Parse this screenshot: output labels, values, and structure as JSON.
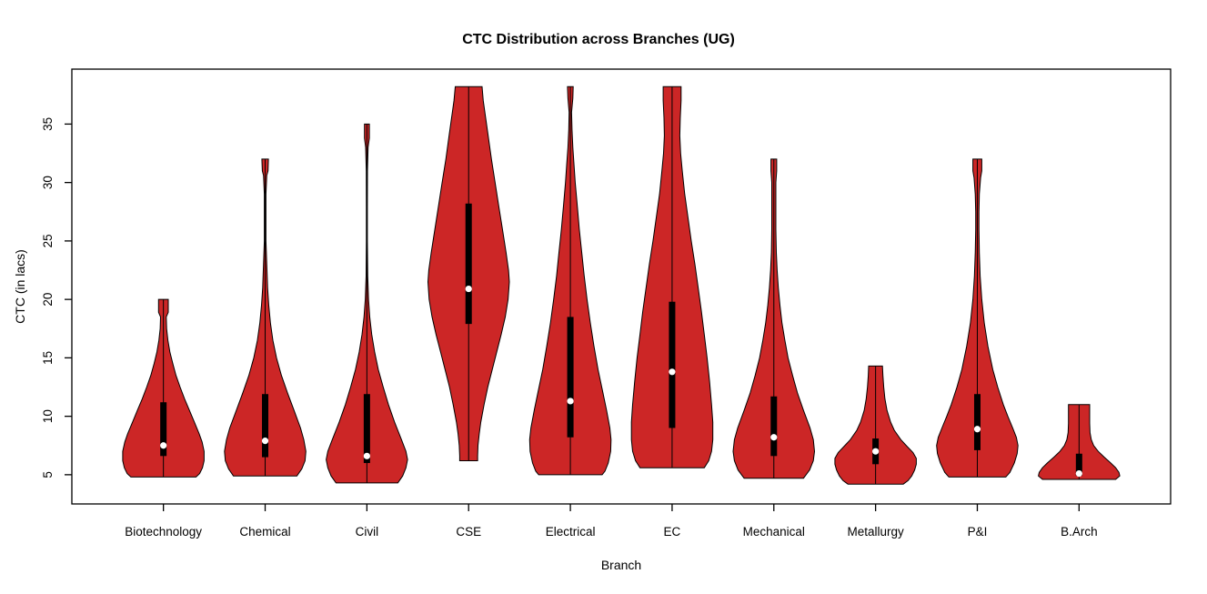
{
  "chart_data": {
    "type": "violin",
    "title": "CTC Distribution across Branches (UG)",
    "xlabel": "Branch",
    "ylabel": "CTC (in lacs)",
    "yticks": [
      5,
      10,
      15,
      20,
      25,
      30,
      35
    ],
    "ylim": [
      2.5,
      39.7
    ],
    "grid": false,
    "legend": "none",
    "colors": {
      "violin_fill": "#CC2626",
      "violin_outline": "#000000",
      "box": "#000000",
      "median_dot": "#FFFFFF",
      "background": "#FFFFFF",
      "frame": "#000000"
    },
    "categories": [
      "Biotechnology",
      "Chemical",
      "Civil",
      "CSE",
      "Electrical",
      "EC",
      "Mechanical",
      "Metallurgy",
      "P&I",
      "B.Arch"
    ],
    "series": [
      {
        "name": "Biotechnology",
        "min": 5.0,
        "max": 20.0,
        "q1": 6.6,
        "median": 7.5,
        "q3": 11.2,
        "shape": [
          [
            20.0,
            0.12
          ],
          [
            18.9,
            0.12
          ],
          [
            18.5,
            0.07
          ],
          [
            17.5,
            0.08
          ],
          [
            16.5,
            0.11
          ],
          [
            15.5,
            0.16
          ],
          [
            14.5,
            0.23
          ],
          [
            13.5,
            0.31
          ],
          [
            12.5,
            0.41
          ],
          [
            11.5,
            0.52
          ],
          [
            10.5,
            0.64
          ],
          [
            9.5,
            0.76
          ],
          [
            8.5,
            0.88
          ],
          [
            7.8,
            0.95
          ],
          [
            7.0,
            1.0
          ],
          [
            6.2,
            1.0
          ],
          [
            5.6,
            0.96
          ],
          [
            5.1,
            0.89
          ],
          [
            4.8,
            0.8
          ]
        ]
      },
      {
        "name": "Chemical",
        "min": 5.0,
        "max": 32.0,
        "q1": 6.5,
        "median": 7.9,
        "q3": 11.9,
        "shape": [
          [
            32.0,
            0.08
          ],
          [
            31.0,
            0.07
          ],
          [
            30.6,
            0.04
          ],
          [
            29.0,
            0.02
          ],
          [
            27.0,
            0.02
          ],
          [
            25.0,
            0.02
          ],
          [
            23.0,
            0.04
          ],
          [
            21.0,
            0.06
          ],
          [
            19.5,
            0.09
          ],
          [
            18.0,
            0.13
          ],
          [
            16.5,
            0.19
          ],
          [
            15.0,
            0.28
          ],
          [
            13.5,
            0.4
          ],
          [
            12.0,
            0.55
          ],
          [
            10.5,
            0.71
          ],
          [
            9.0,
            0.87
          ],
          [
            8.0,
            0.95
          ],
          [
            7.0,
            1.0
          ],
          [
            6.2,
            0.98
          ],
          [
            5.5,
            0.9
          ],
          [
            4.9,
            0.78
          ]
        ]
      },
      {
        "name": "Civil",
        "min": 4.5,
        "max": 35.0,
        "q1": 6.0,
        "median": 6.6,
        "q3": 11.9,
        "shape": [
          [
            35.0,
            0.06
          ],
          [
            33.8,
            0.06
          ],
          [
            33.0,
            0.03
          ],
          [
            31.0,
            0.015
          ],
          [
            28.0,
            0.012
          ],
          [
            25.0,
            0.012
          ],
          [
            22.0,
            0.02
          ],
          [
            20.0,
            0.04
          ],
          [
            18.5,
            0.07
          ],
          [
            17.0,
            0.12
          ],
          [
            15.5,
            0.19
          ],
          [
            14.0,
            0.28
          ],
          [
            12.5,
            0.4
          ],
          [
            11.0,
            0.53
          ],
          [
            9.5,
            0.68
          ],
          [
            8.0,
            0.85
          ],
          [
            7.0,
            0.96
          ],
          [
            6.3,
            1.0
          ],
          [
            5.6,
            0.96
          ],
          [
            4.9,
            0.88
          ],
          [
            4.3,
            0.76
          ]
        ]
      },
      {
        "name": "CSE",
        "min": 6.0,
        "max": 38.2,
        "q1": 17.9,
        "median": 20.9,
        "q3": 28.2,
        "shape": [
          [
            38.2,
            0.33
          ],
          [
            37.0,
            0.36
          ],
          [
            35.5,
            0.42
          ],
          [
            34.0,
            0.48
          ],
          [
            32.0,
            0.56
          ],
          [
            30.0,
            0.65
          ],
          [
            28.0,
            0.74
          ],
          [
            26.0,
            0.83
          ],
          [
            24.0,
            0.92
          ],
          [
            22.5,
            0.98
          ],
          [
            21.5,
            1.0
          ],
          [
            20.0,
            0.97
          ],
          [
            18.5,
            0.9
          ],
          [
            17.0,
            0.8
          ],
          [
            15.5,
            0.69
          ],
          [
            14.0,
            0.58
          ],
          [
            12.5,
            0.47
          ],
          [
            11.0,
            0.38
          ],
          [
            9.5,
            0.3
          ],
          [
            8.5,
            0.26
          ],
          [
            7.5,
            0.23
          ],
          [
            6.6,
            0.22
          ],
          [
            6.2,
            0.22
          ]
        ]
      },
      {
        "name": "Electrical",
        "min": 5.0,
        "max": 38.2,
        "q1": 8.2,
        "median": 11.3,
        "q3": 18.5,
        "shape": [
          [
            38.2,
            0.07
          ],
          [
            37.2,
            0.06
          ],
          [
            36.0,
            0.03
          ],
          [
            34.5,
            0.04
          ],
          [
            33.0,
            0.06
          ],
          [
            31.5,
            0.09
          ],
          [
            30.0,
            0.12
          ],
          [
            28.0,
            0.17
          ],
          [
            26.0,
            0.22
          ],
          [
            24.0,
            0.28
          ],
          [
            22.0,
            0.34
          ],
          [
            20.0,
            0.41
          ],
          [
            18.0,
            0.49
          ],
          [
            16.0,
            0.58
          ],
          [
            14.0,
            0.68
          ],
          [
            12.0,
            0.8
          ],
          [
            10.5,
            0.89
          ],
          [
            9.0,
            0.97
          ],
          [
            8.0,
            1.0
          ],
          [
            7.0,
            0.99
          ],
          [
            6.0,
            0.93
          ],
          [
            5.3,
            0.85
          ],
          [
            5.0,
            0.78
          ]
        ]
      },
      {
        "name": "EC",
        "min": 5.5,
        "max": 38.2,
        "q1": 9.0,
        "median": 13.8,
        "q3": 19.8,
        "shape": [
          [
            38.2,
            0.22
          ],
          [
            37.0,
            0.22
          ],
          [
            35.5,
            0.2
          ],
          [
            34.0,
            0.19
          ],
          [
            32.5,
            0.21
          ],
          [
            31.0,
            0.25
          ],
          [
            29.0,
            0.31
          ],
          [
            27.0,
            0.39
          ],
          [
            25.0,
            0.47
          ],
          [
            23.0,
            0.56
          ],
          [
            21.0,
            0.64
          ],
          [
            19.0,
            0.72
          ],
          [
            17.0,
            0.79
          ],
          [
            15.0,
            0.86
          ],
          [
            13.0,
            0.92
          ],
          [
            11.0,
            0.97
          ],
          [
            9.5,
            1.0
          ],
          [
            8.0,
            1.0
          ],
          [
            7.0,
            0.97
          ],
          [
            6.2,
            0.9
          ],
          [
            5.6,
            0.79
          ]
        ]
      },
      {
        "name": "Mechanical",
        "min": 4.7,
        "max": 32.0,
        "q1": 6.6,
        "median": 8.2,
        "q3": 11.7,
        "shape": [
          [
            32.0,
            0.07
          ],
          [
            31.0,
            0.07
          ],
          [
            30.0,
            0.05
          ],
          [
            28.0,
            0.05
          ],
          [
            26.0,
            0.05
          ],
          [
            24.0,
            0.06
          ],
          [
            22.5,
            0.08
          ],
          [
            21.0,
            0.11
          ],
          [
            19.5,
            0.15
          ],
          [
            18.0,
            0.2
          ],
          [
            16.5,
            0.27
          ],
          [
            15.0,
            0.35
          ],
          [
            13.5,
            0.46
          ],
          [
            12.0,
            0.58
          ],
          [
            10.5,
            0.73
          ],
          [
            9.0,
            0.89
          ],
          [
            8.0,
            0.97
          ],
          [
            7.0,
            1.0
          ],
          [
            6.2,
            0.97
          ],
          [
            5.4,
            0.88
          ],
          [
            4.7,
            0.73
          ]
        ]
      },
      {
        "name": "Metallurgy",
        "min": 4.2,
        "max": 14.3,
        "q1": 5.9,
        "median": 7.0,
        "q3": 8.1,
        "shape": [
          [
            14.3,
            0.17
          ],
          [
            13.5,
            0.18
          ],
          [
            12.5,
            0.2
          ],
          [
            11.5,
            0.23
          ],
          [
            10.5,
            0.28
          ],
          [
            9.5,
            0.37
          ],
          [
            8.8,
            0.46
          ],
          [
            8.0,
            0.62
          ],
          [
            7.4,
            0.78
          ],
          [
            6.9,
            0.92
          ],
          [
            6.4,
            1.0
          ],
          [
            5.9,
            1.0
          ],
          [
            5.4,
            0.96
          ],
          [
            4.9,
            0.89
          ],
          [
            4.5,
            0.8
          ],
          [
            4.2,
            0.68
          ]
        ]
      },
      {
        "name": "P&I",
        "min": 4.8,
        "max": 32.0,
        "q1": 7.1,
        "median": 8.9,
        "q3": 11.9,
        "shape": [
          [
            32.0,
            0.11
          ],
          [
            31.0,
            0.11
          ],
          [
            30.4,
            0.08
          ],
          [
            29.0,
            0.05
          ],
          [
            27.5,
            0.04
          ],
          [
            26.0,
            0.04
          ],
          [
            24.0,
            0.05
          ],
          [
            22.0,
            0.07
          ],
          [
            20.0,
            0.11
          ],
          [
            18.0,
            0.17
          ],
          [
            16.0,
            0.26
          ],
          [
            14.0,
            0.38
          ],
          [
            12.5,
            0.5
          ],
          [
            11.0,
            0.64
          ],
          [
            10.0,
            0.75
          ],
          [
            9.0,
            0.87
          ],
          [
            8.2,
            0.96
          ],
          [
            7.5,
            1.0
          ],
          [
            6.8,
            0.98
          ],
          [
            6.0,
            0.91
          ],
          [
            5.2,
            0.8
          ],
          [
            4.8,
            0.7
          ]
        ]
      },
      {
        "name": "B.Arch",
        "min": 4.6,
        "max": 11.0,
        "q1": 4.9,
        "median": 5.1,
        "q3": 6.8,
        "shape": [
          [
            11.0,
            0.26
          ],
          [
            10.2,
            0.26
          ],
          [
            9.4,
            0.26
          ],
          [
            8.6,
            0.27
          ],
          [
            8.0,
            0.3
          ],
          [
            7.5,
            0.36
          ],
          [
            7.0,
            0.47
          ],
          [
            6.5,
            0.62
          ],
          [
            6.0,
            0.78
          ],
          [
            5.6,
            0.9
          ],
          [
            5.2,
            0.98
          ],
          [
            4.9,
            1.0
          ],
          [
            4.6,
            0.9
          ]
        ]
      }
    ]
  }
}
